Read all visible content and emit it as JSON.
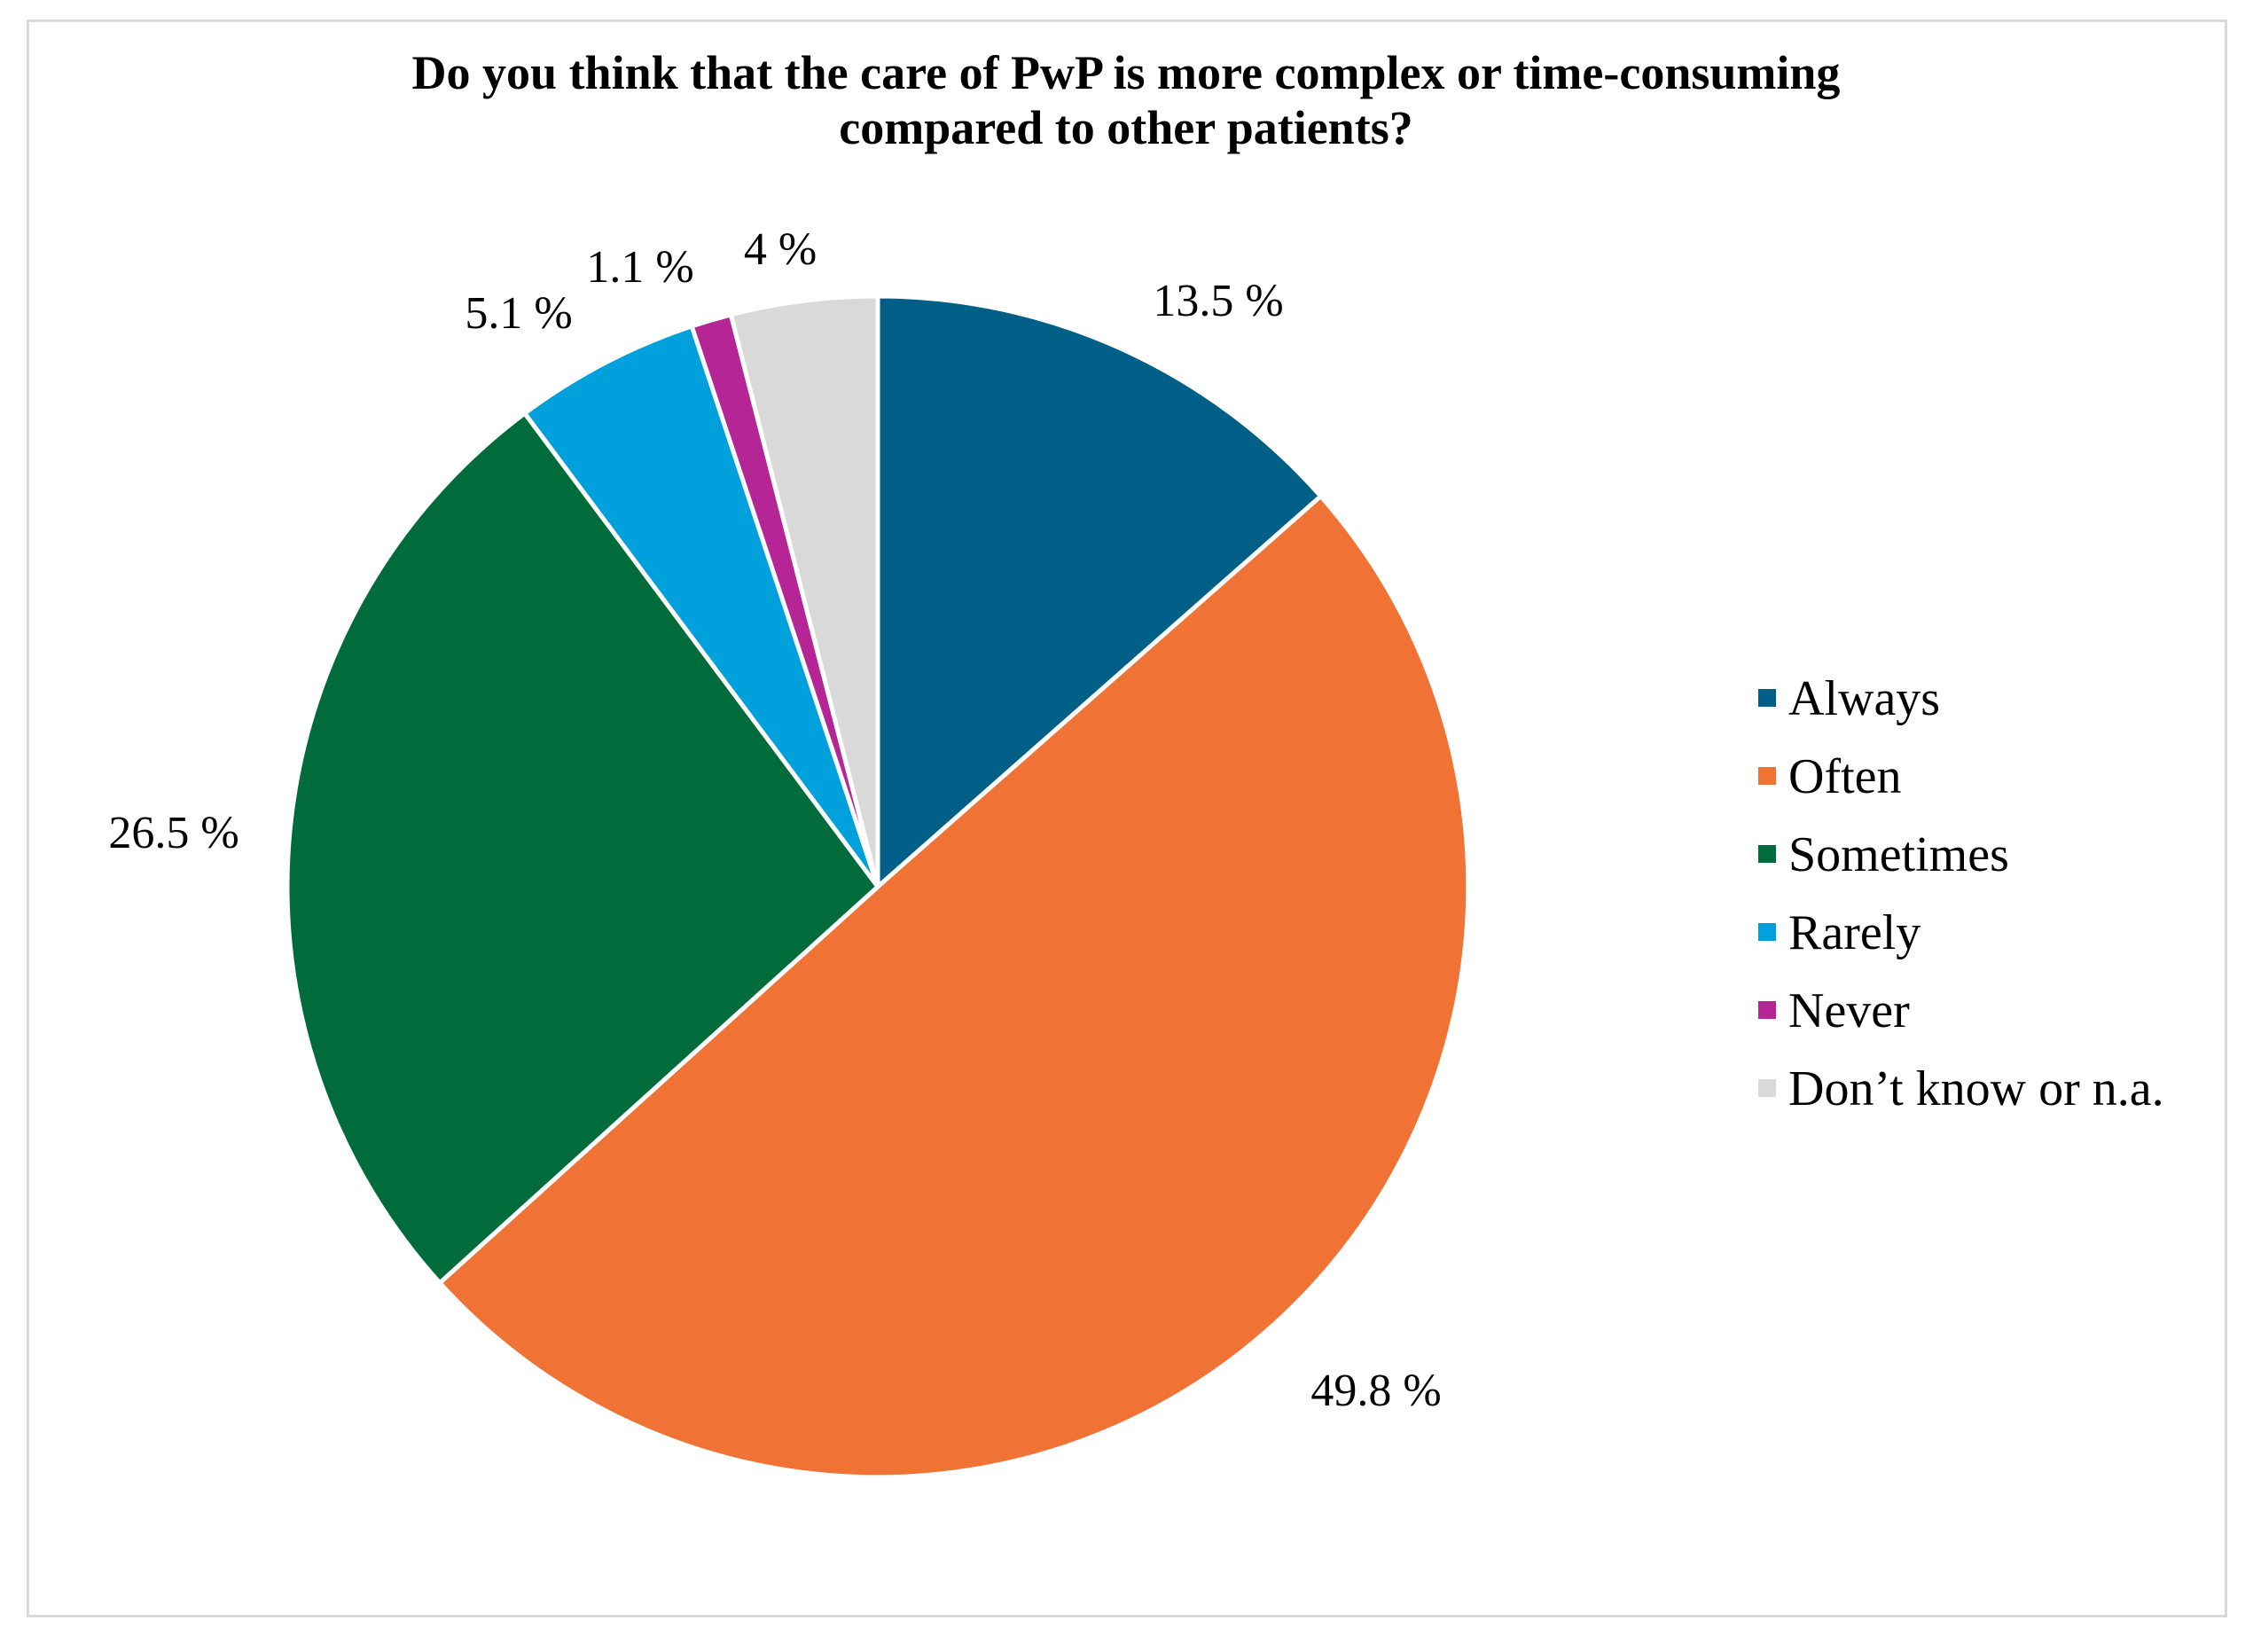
{
  "chart_data": {
    "type": "pie",
    "title": "Do you think that the care of PwP is more complex or time-consuming compared to other patients?",
    "title_lines": [
      "Do you think that the care of PwP is more complex or time-consuming",
      "compared to other patients?"
    ],
    "start_angle": "12 o'clock",
    "direction": "clockwise",
    "legend_position": "right",
    "slices": [
      {
        "name": "Always",
        "value": 13.5,
        "label": "13.5 %",
        "color": "#005F86"
      },
      {
        "name": "Often",
        "value": 49.8,
        "label": "49.8 %",
        "color": "#F07234"
      },
      {
        "name": "Sometimes",
        "value": 26.5,
        "label": "26.5 %",
        "color": "#006B3B"
      },
      {
        "name": "Rarely",
        "value": 5.1,
        "label": "5.1 %",
        "color": "#00A0DC"
      },
      {
        "name": "Never",
        "value": 1.1,
        "label": "1.1 %",
        "color": "#B52595"
      },
      {
        "name": "Don’t know or n.a.",
        "value": 4,
        "label": "4 %",
        "color": "#D9D9D9"
      }
    ]
  }
}
